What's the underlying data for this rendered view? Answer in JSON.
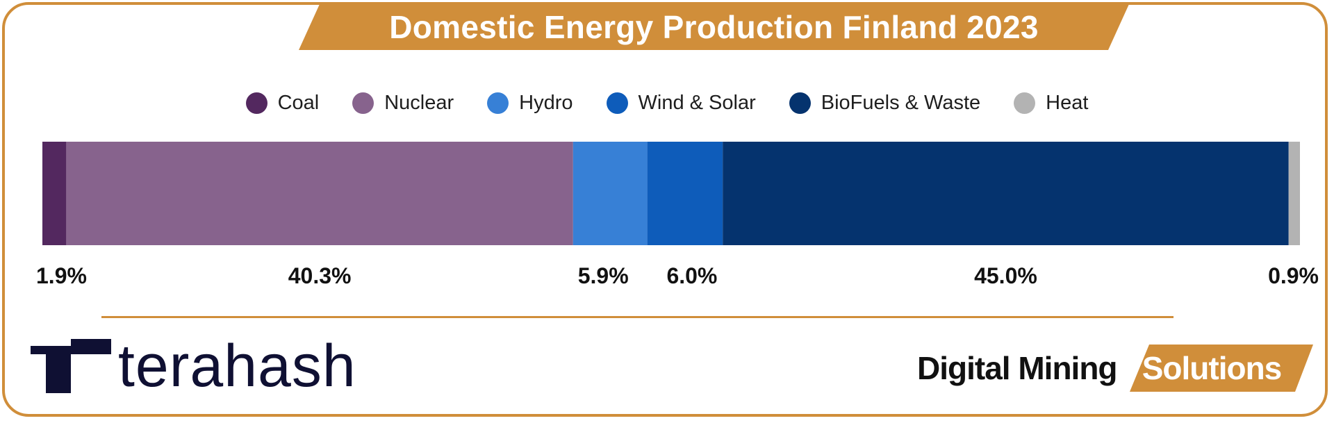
{
  "title": "Domestic Energy Production Finland 2023",
  "colors": {
    "accent": "#d08e3a",
    "brand_dark": "#0f1033"
  },
  "legend": [
    {
      "label": "Coal",
      "color": "#53285f"
    },
    {
      "label": "Nuclear",
      "color": "#87638d"
    },
    {
      "label": "Hydro",
      "color": "#3780d6"
    },
    {
      "label": "Wind & Solar",
      "color": "#0e5cba"
    },
    {
      "label": "BioFuels & Waste",
      "color": "#05336e"
    },
    {
      "label": "Heat",
      "color": "#b3b3b3"
    }
  ],
  "chart_data": {
    "type": "bar",
    "orientation": "horizontal-stacked-100",
    "title": "Domestic Energy Production Finland 2023",
    "categories": [
      "Coal",
      "Nuclear",
      "Hydro",
      "Wind & Solar",
      "BioFuels & Waste",
      "Heat"
    ],
    "values": [
      1.9,
      40.3,
      5.9,
      6.0,
      45.0,
      0.9
    ],
    "data_labels": [
      "1.9%",
      "40.3%",
      "5.9%",
      "6.0%",
      "45.0%",
      "0.9%"
    ],
    "unit": "%",
    "legend_position": "top",
    "grid": false
  },
  "branding": {
    "left_logo": "terahash",
    "right_logo_dark": "Digital Mining",
    "right_logo_accent": "Solutions"
  }
}
